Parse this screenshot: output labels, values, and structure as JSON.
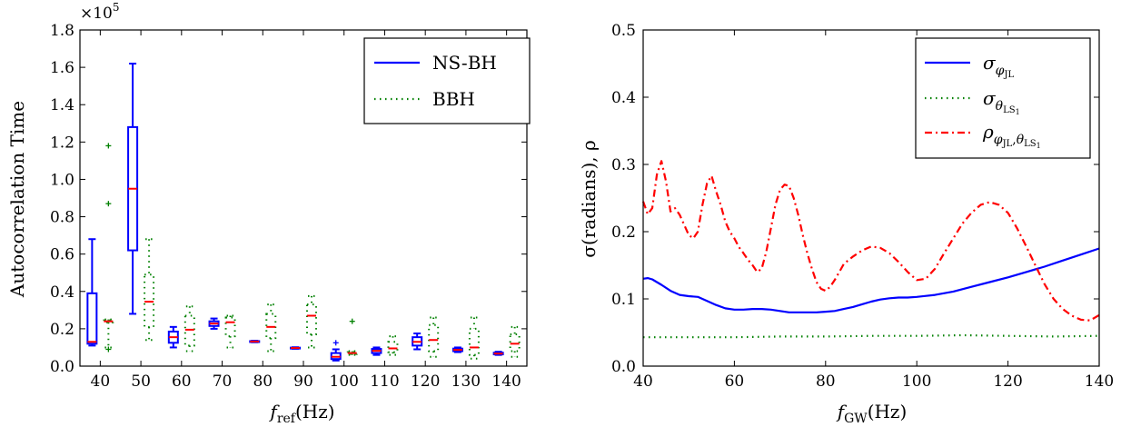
{
  "chart_data": [
    {
      "type": "box",
      "xlabel": "f_ref(Hz)",
      "xlabel_main": "f",
      "xlabel_sub": "ref",
      "xlabel_unit": "(Hz)",
      "ylabel": "Autocorrelation Time",
      "y_multiplier": "×10",
      "y_multiplier_exp": "5",
      "ylim": [
        0,
        1.8
      ],
      "yticks": [
        "0.0",
        "0.2",
        "0.4",
        "0.6",
        "0.8",
        "1.0",
        "1.2",
        "1.4",
        "1.6",
        "1.8"
      ],
      "categories": [
        "40",
        "50",
        "60",
        "70",
        "80",
        "90",
        "100",
        "110",
        "120",
        "130",
        "140"
      ],
      "legend": {
        "position": "upper right",
        "entries": [
          "NS-BH",
          "BBH"
        ]
      },
      "series": [
        {
          "name": "NS-BH",
          "color": "#0000ff",
          "style": "solid",
          "boxes": [
            {
              "cat": "40",
              "whislo": 0.11,
              "q1": 0.12,
              "med": 0.13,
              "q3": 0.39,
              "whishi": 0.68,
              "fliers": []
            },
            {
              "cat": "50",
              "whislo": 0.28,
              "q1": 0.62,
              "med": 0.95,
              "q3": 1.28,
              "whishi": 1.62,
              "fliers": []
            },
            {
              "cat": "60",
              "whislo": 0.1,
              "q1": 0.125,
              "med": 0.155,
              "q3": 0.185,
              "whishi": 0.21,
              "fliers": []
            },
            {
              "cat": "70",
              "whislo": 0.2,
              "q1": 0.215,
              "med": 0.228,
              "q3": 0.24,
              "whishi": 0.255,
              "fliers": []
            },
            {
              "cat": "80",
              "whislo": 0.128,
              "q1": 0.13,
              "med": 0.132,
              "q3": 0.134,
              "whishi": 0.136,
              "fliers": []
            },
            {
              "cat": "90",
              "whislo": 0.093,
              "q1": 0.095,
              "med": 0.097,
              "q3": 0.099,
              "whishi": 0.101,
              "fliers": []
            },
            {
              "cat": "100",
              "whislo": 0.03,
              "q1": 0.038,
              "med": 0.05,
              "q3": 0.07,
              "whishi": 0.09,
              "fliers": [
                0.125
              ]
            },
            {
              "cat": "110",
              "whislo": 0.06,
              "q1": 0.07,
              "med": 0.082,
              "q3": 0.092,
              "whishi": 0.1,
              "fliers": []
            },
            {
              "cat": "120",
              "whislo": 0.09,
              "q1": 0.11,
              "med": 0.13,
              "q3": 0.155,
              "whishi": 0.175,
              "fliers": []
            },
            {
              "cat": "130",
              "whislo": 0.075,
              "q1": 0.08,
              "med": 0.087,
              "q3": 0.094,
              "whishi": 0.1,
              "fliers": []
            },
            {
              "cat": "140",
              "whislo": 0.06,
              "q1": 0.063,
              "med": 0.067,
              "q3": 0.072,
              "whishi": 0.077,
              "fliers": []
            }
          ]
        },
        {
          "name": "BBH",
          "color": "#008000",
          "style": "dotted",
          "boxes": [
            {
              "cat": "40",
              "whislo": 0.1,
              "q1": 0.235,
              "med": 0.24,
              "q3": 0.245,
              "whishi": 0.25,
              "fliers": [
                1.18,
                0.87,
                0.09
              ]
            },
            {
              "cat": "50",
              "whislo": 0.14,
              "q1": 0.21,
              "med": 0.345,
              "q3": 0.49,
              "whishi": 0.68,
              "fliers": []
            },
            {
              "cat": "60",
              "whislo": 0.08,
              "q1": 0.11,
              "med": 0.195,
              "q3": 0.27,
              "whishi": 0.32,
              "fliers": []
            },
            {
              "cat": "70",
              "whislo": 0.1,
              "q1": 0.16,
              "med": 0.235,
              "q3": 0.26,
              "whishi": 0.27,
              "fliers": []
            },
            {
              "cat": "80",
              "whislo": 0.08,
              "q1": 0.15,
              "med": 0.21,
              "q3": 0.28,
              "whishi": 0.33,
              "fliers": []
            },
            {
              "cat": "90",
              "whislo": 0.1,
              "q1": 0.17,
              "med": 0.27,
              "q3": 0.33,
              "whishi": 0.375,
              "fliers": []
            },
            {
              "cat": "100",
              "whislo": 0.06,
              "q1": 0.065,
              "med": 0.07,
              "q3": 0.075,
              "whishi": 0.08,
              "fliers": [
                0.24
              ]
            },
            {
              "cat": "110",
              "whislo": 0.06,
              "q1": 0.075,
              "med": 0.095,
              "q3": 0.13,
              "whishi": 0.16,
              "fliers": []
            },
            {
              "cat": "120",
              "whislo": 0.05,
              "q1": 0.08,
              "med": 0.14,
              "q3": 0.22,
              "whishi": 0.26,
              "fliers": []
            },
            {
              "cat": "130",
              "whislo": 0.04,
              "q1": 0.06,
              "med": 0.1,
              "q3": 0.2,
              "whishi": 0.26,
              "fliers": []
            },
            {
              "cat": "140",
              "whislo": 0.05,
              "q1": 0.08,
              "med": 0.12,
              "q3": 0.17,
              "whishi": 0.21,
              "fliers": []
            }
          ]
        }
      ],
      "median_color": "#ff0000"
    },
    {
      "type": "line",
      "xlabel": "f_GW(Hz)",
      "xlabel_main": "f",
      "xlabel_sub": "GW",
      "xlabel_unit": "(Hz)",
      "ylabel": "σ(radians), ρ",
      "xlim": [
        40,
        140
      ],
      "ylim": [
        0,
        0.5
      ],
      "xticks": [
        "40",
        "60",
        "80",
        "100",
        "120",
        "140"
      ],
      "yticks": [
        "0.0",
        "0.1",
        "0.2",
        "0.3",
        "0.4",
        "0.5"
      ],
      "legend": {
        "position": "upper right",
        "entries": [
          {
            "base": "σ",
            "sub": "φ",
            "subsub": "JL"
          },
          {
            "base": "σ",
            "sub": "θ",
            "subsub": "LS",
            "subsubsub": "1"
          },
          {
            "base": "ρ",
            "sub": "φ",
            "subsub": "JL",
            "sep": ",",
            "sub2": "θ",
            "subsub2": "LS",
            "subsubsub2": "1"
          }
        ]
      },
      "series": [
        {
          "name": "σ_φJL",
          "color": "#0000ff",
          "style": "solid",
          "x": [
            40,
            41,
            42,
            44,
            46,
            48,
            50,
            52,
            54,
            56,
            58,
            60,
            62,
            64,
            66,
            68,
            70,
            72,
            74,
            76,
            78,
            80,
            82,
            84,
            86,
            88,
            90,
            92,
            94,
            96,
            98,
            100,
            104,
            108,
            112,
            116,
            120,
            124,
            128,
            132,
            136,
            140
          ],
          "y": [
            0.13,
            0.131,
            0.129,
            0.121,
            0.112,
            0.106,
            0.104,
            0.103,
            0.097,
            0.091,
            0.086,
            0.084,
            0.084,
            0.085,
            0.085,
            0.084,
            0.082,
            0.08,
            0.08,
            0.08,
            0.08,
            0.081,
            0.082,
            0.085,
            0.088,
            0.092,
            0.096,
            0.099,
            0.101,
            0.102,
            0.102,
            0.103,
            0.106,
            0.111,
            0.118,
            0.125,
            0.132,
            0.14,
            0.148,
            0.157,
            0.166,
            0.175
          ]
        },
        {
          "name": "σ_θLS1",
          "color": "#008000",
          "style": "dotted",
          "x": [
            40,
            50,
            60,
            70,
            80,
            90,
            100,
            110,
            120,
            130,
            140
          ],
          "y": [
            0.043,
            0.043,
            0.043,
            0.044,
            0.044,
            0.045,
            0.045,
            0.046,
            0.045,
            0.044,
            0.045
          ]
        },
        {
          "name": "ρ_φJL,θLS1",
          "color": "#ff0000",
          "style": "dashdot",
          "x": [
            40,
            41,
            42,
            43,
            44,
            45,
            46,
            47,
            48,
            49,
            50,
            51,
            52,
            53,
            54,
            55,
            56,
            57,
            58,
            59,
            60,
            61,
            62,
            63,
            64,
            65,
            66,
            67,
            68,
            69,
            70,
            71,
            72,
            73,
            74,
            75,
            76,
            77,
            78,
            79,
            80,
            81,
            82,
            83,
            84,
            86,
            88,
            90,
            92,
            94,
            96,
            98,
            100,
            102,
            104,
            106,
            108,
            110,
            112,
            114,
            116,
            118,
            120,
            122,
            124,
            126,
            128,
            130,
            132,
            134,
            136,
            138,
            140
          ],
          "y": [
            0.245,
            0.226,
            0.235,
            0.285,
            0.305,
            0.275,
            0.23,
            0.235,
            0.225,
            0.21,
            0.195,
            0.19,
            0.2,
            0.24,
            0.272,
            0.283,
            0.26,
            0.24,
            0.215,
            0.2,
            0.19,
            0.177,
            0.168,
            0.158,
            0.15,
            0.14,
            0.145,
            0.17,
            0.205,
            0.24,
            0.262,
            0.27,
            0.268,
            0.25,
            0.225,
            0.195,
            0.168,
            0.145,
            0.125,
            0.115,
            0.112,
            0.118,
            0.128,
            0.14,
            0.152,
            0.163,
            0.172,
            0.178,
            0.176,
            0.168,
            0.155,
            0.14,
            0.128,
            0.13,
            0.145,
            0.168,
            0.19,
            0.212,
            0.228,
            0.24,
            0.244,
            0.24,
            0.228,
            0.205,
            0.178,
            0.15,
            0.122,
            0.1,
            0.085,
            0.075,
            0.069,
            0.068,
            0.076
          ]
        }
      ]
    }
  ]
}
